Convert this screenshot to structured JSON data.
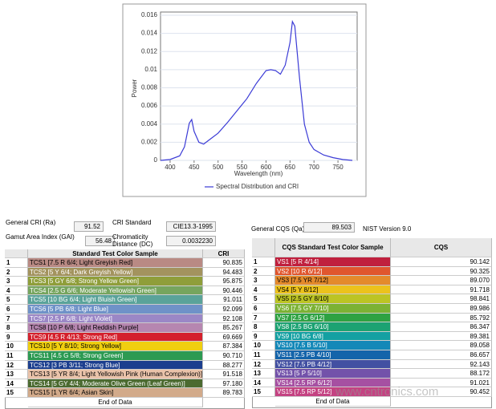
{
  "chart_data": {
    "type": "line",
    "xlabel": "Wavelength (nm)",
    "ylabel": "Power",
    "x": [
      380,
      400,
      420,
      430,
      440,
      445,
      450,
      460,
      470,
      480,
      500,
      520,
      540,
      560,
      580,
      600,
      610,
      620,
      630,
      640,
      650,
      655,
      660,
      670,
      680,
      690,
      700,
      720,
      740,
      760,
      780
    ],
    "series": [
      {
        "name": "Spectral Distribution and CRI",
        "color": "#3b3bd6",
        "values": [
          0,
          0.0001,
          0.0005,
          0.0015,
          0.0041,
          0.0045,
          0.0032,
          0.002,
          0.0018,
          0.0022,
          0.003,
          0.0042,
          0.0055,
          0.0068,
          0.0085,
          0.0099,
          0.01,
          0.0099,
          0.0095,
          0.0105,
          0.013,
          0.0153,
          0.0148,
          0.009,
          0.004,
          0.002,
          0.0012,
          0.0006,
          0.0003,
          0.0001,
          0
        ]
      }
    ],
    "xlim": [
      380,
      790
    ],
    "ylim": [
      0,
      0.016
    ],
    "xticks": [
      400,
      450,
      500,
      550,
      600,
      650,
      700,
      750
    ],
    "yticks": [
      0,
      0.002,
      0.004,
      0.006,
      0.008,
      0.01,
      0.012,
      0.014,
      0.016
    ],
    "grid": true,
    "legend": "bottom"
  },
  "cri_panel": {
    "fields": [
      {
        "label": "General CRI (Ra)",
        "value": "91.52"
      },
      {
        "label": "CRI Standard",
        "value": "CIE13.3-1995"
      },
      {
        "label": "Gamut Area Index (GAI)",
        "value": "56.48"
      },
      {
        "label": "Chromaticity Distance (DC)",
        "value": "0.0032230"
      }
    ],
    "header": [
      "Standard Test Color Sample",
      "CRI"
    ],
    "rows": [
      [
        "1",
        "TCS1 [7.5 R 6/4; Light Greyish Red]",
        "90.835",
        "#b98a84"
      ],
      [
        "2",
        "TCS2 [5 Y 6/4; Dark Greyish Yellow]",
        "94.483",
        "#a3935e"
      ],
      [
        "3",
        "TCS3 [5 GY 6/8; Strong Yellow Green]",
        "95.875",
        "#8f9e3a"
      ],
      [
        "4",
        "TCS4 [2.5 G 6/6; Moderate Yellowish Green]",
        "90.446",
        "#76a55e"
      ],
      [
        "5",
        "TCS5 [10 BG 6/4; Light Bluish Green]",
        "91.011",
        "#5aa39a"
      ],
      [
        "6",
        "TCS6 [5 PB 6/8; Light Blue]",
        "92.099",
        "#6f92c8"
      ],
      [
        "7",
        "TCS7 [2.5 P 6/8; Light Violet]",
        "92.108",
        "#9b87c6"
      ],
      [
        "8",
        "TCS8 [10 P 6/8; Light Reddish Purple]",
        "85.267",
        "#b686b0"
      ],
      [
        "9",
        "TCS9 [4.5 R 4/13; Strong Red]",
        "69.669",
        "#d4202c"
      ],
      [
        "10",
        "TCS10 [5 Y 8/10; Strong Yellow]",
        "87.384",
        "#f0cf10"
      ],
      [
        "11",
        "TCS11 [4.5 G 5/8; Strong Green]",
        "90.710",
        "#2c9a52"
      ],
      [
        "12",
        "TCS12 [3 PB 3/11; Strong Blue]",
        "88.277",
        "#1b3e8e"
      ],
      [
        "13",
        "TCS13 [5 YR 8/4; Light Yellowish Pink (Human Complexion)]",
        "91.518",
        "#eac3aa"
      ],
      [
        "14",
        "TCS14 [5 GY 4/4; Moderate Olive Green (Leaf Green)]",
        "97.180",
        "#4b6a30"
      ],
      [
        "15",
        "TCS15 [1 YR 6/4; Asian Skin]",
        "89.783",
        "#d2aa8a"
      ]
    ],
    "footer": "End of Data"
  },
  "cqs_panel": {
    "fields": [
      {
        "label": "General CQS (Qa)",
        "value": "89.503"
      }
    ],
    "version": "NIST Version 9.0",
    "header": [
      "CQS Standard Test Color Sample",
      "CQS"
    ],
    "rows": [
      [
        "1",
        "VS1 [5 R 4/14]",
        "90.142",
        "#c0203e"
      ],
      [
        "2",
        "VS2 [10 R 6/12]",
        "90.325",
        "#e0562e"
      ],
      [
        "3",
        "VS3 [7.5 YR 7/12]",
        "89.070",
        "#e48a2c"
      ],
      [
        "4",
        "VS4 [5 Y 8/12]",
        "91.718",
        "#ecc21c"
      ],
      [
        "5",
        "VS5 [2.5 GY 8/10]",
        "98.841",
        "#bcc424"
      ],
      [
        "6",
        "VS6 [7.5 GY 7/10]",
        "89.986",
        "#7cb234"
      ],
      [
        "7",
        "VS7 [2.5 G 6/12]",
        "85.792",
        "#2ea242"
      ],
      [
        "8",
        "VS8 [2.5 BG 6/10]",
        "86.347",
        "#1ca272"
      ],
      [
        "9",
        "VS9 [10 BG 6/8]",
        "89.381",
        "#14a0a2"
      ],
      [
        "10",
        "VS10 [7.5 B 5/10]",
        "89.058",
        "#1488b8"
      ],
      [
        "11",
        "VS11 [2.5 PB 4/10]",
        "86.657",
        "#1464aa"
      ],
      [
        "12",
        "VS12 [7.5 PB 4/12]",
        "92.143",
        "#4250a2"
      ],
      [
        "13",
        "VS13 [5 P 5/10]",
        "88.172",
        "#7352aa"
      ],
      [
        "14",
        "VS14 [2.5 RP 6/12]",
        "91.021",
        "#a650a2"
      ],
      [
        "15",
        "VS15 [7.5 RP 5/12]",
        "90.452",
        "#c44282"
      ]
    ],
    "footer": "End of Data"
  },
  "watermark": "www.cntronics.com"
}
